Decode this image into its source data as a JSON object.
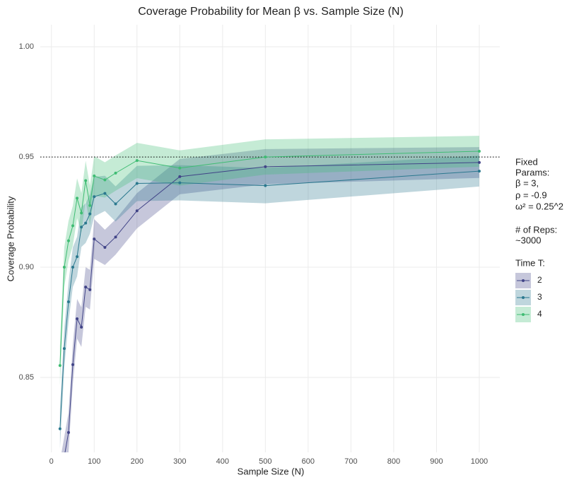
{
  "chart_data": {
    "type": "line",
    "title": "Coverage Probability for Mean β vs. Sample Size (N)",
    "x_label": "Sample Size (N)",
    "y_label": "Coverage Probability",
    "x": [
      20,
      30,
      40,
      50,
      60,
      70,
      80,
      90,
      100,
      125,
      150,
      200,
      300,
      500,
      1000
    ],
    "series": [
      {
        "name": "2",
        "color": "#414487",
        "values": [
          0.803,
          0.814,
          0.825,
          0.8558,
          0.8766,
          0.8728,
          0.891,
          0.8898,
          0.9128,
          0.909,
          0.9137,
          0.9256,
          0.9411,
          0.9456,
          0.9475
        ],
        "lower": [
          0.794,
          0.805,
          0.816,
          0.8468,
          0.8676,
          0.8638,
          0.882,
          0.8808,
          0.9038,
          0.901,
          0.9057,
          0.9176,
          0.9331,
          0.9376,
          0.9405
        ],
        "upper": [
          0.812,
          0.823,
          0.834,
          0.8648,
          0.8856,
          0.8818,
          0.9,
          0.8988,
          0.9218,
          0.917,
          0.9217,
          0.9336,
          0.9491,
          0.9536,
          0.9545
        ]
      },
      {
        "name": "3",
        "color": "#2a788e",
        "values": [
          0.8267,
          0.8631,
          0.8843,
          0.9,
          0.9048,
          0.9182,
          0.92,
          0.9242,
          0.932,
          0.9335,
          0.9287,
          0.938,
          0.9383,
          0.937,
          0.9436
        ],
        "lower": [
          0.8177,
          0.8541,
          0.8753,
          0.891,
          0.8958,
          0.9092,
          0.911,
          0.9152,
          0.923,
          0.9255,
          0.9207,
          0.93,
          0.9303,
          0.929,
          0.9366
        ],
        "upper": [
          0.8357,
          0.8721,
          0.8933,
          0.909,
          0.9138,
          0.9272,
          0.929,
          0.9332,
          0.941,
          0.9415,
          0.9367,
          0.946,
          0.9463,
          0.945,
          0.9506
        ]
      },
      {
        "name": "4",
        "color": "#3fbc73",
        "values": [
          0.8554,
          0.9,
          0.912,
          0.9188,
          0.9313,
          0.9246,
          0.9393,
          0.928,
          0.9414,
          0.9396,
          0.9427,
          0.9484,
          0.945,
          0.95,
          0.9526
        ],
        "lower": [
          0.8464,
          0.891,
          0.903,
          0.9098,
          0.9223,
          0.9156,
          0.9303,
          0.919,
          0.9324,
          0.9316,
          0.9347,
          0.9404,
          0.937,
          0.942,
          0.9456
        ],
        "upper": [
          0.8644,
          0.909,
          0.921,
          0.9278,
          0.9403,
          0.9336,
          0.9483,
          0.937,
          0.9504,
          0.9476,
          0.9507,
          0.9564,
          0.953,
          0.958,
          0.9596
        ]
      }
    ],
    "reference_line": 0.95,
    "xlim": [
      -26,
      1048
    ],
    "ylim": [
      0.816,
      1.01
    ],
    "xticks": [
      0,
      100,
      200,
      300,
      400,
      500,
      600,
      700,
      800,
      900,
      1000
    ],
    "yticks": [
      0.85,
      {
        "value": 0.9,
        "label": "0.90"
      },
      0.95,
      {
        "value": 1.0,
        "label": "1.00"
      }
    ],
    "grid": true,
    "annotation": [
      "Fixed",
      "Params:",
      "β = 3,",
      "ρ = -0.9",
      "ω² = 0.25^2",
      "# of Reps:",
      "~3000"
    ],
    "legend_title": "Time T:",
    "legend_position": "right"
  }
}
